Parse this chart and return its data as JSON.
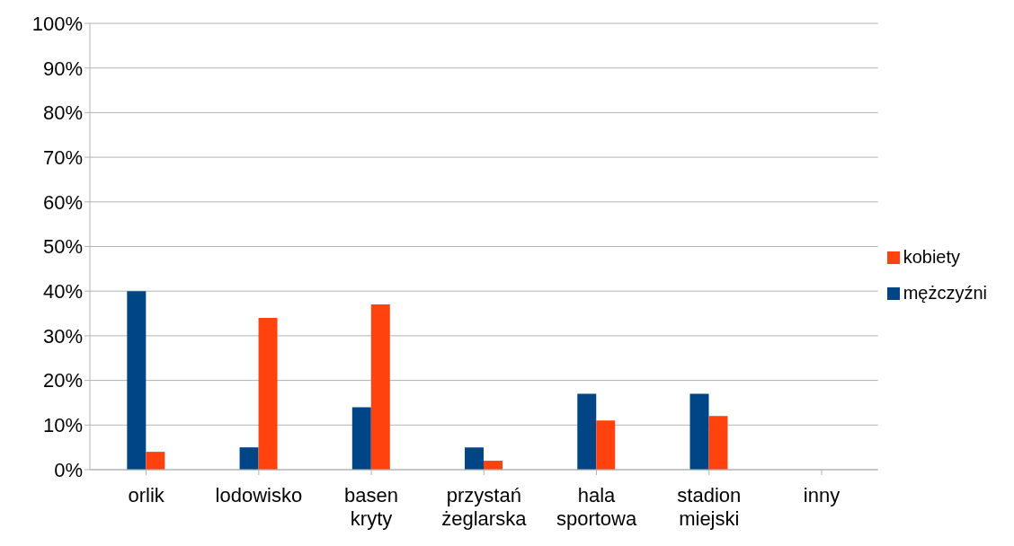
{
  "chart_data": {
    "type": "bar",
    "categories": [
      "orlik",
      "lodowisko",
      "basen kryty",
      "przystań żeglarska",
      "hala sportowa",
      "stadion miejski",
      "inny"
    ],
    "series": [
      {
        "name": "mężczyźni",
        "color": "#004586",
        "values": [
          40,
          5,
          14,
          5,
          17,
          17,
          0
        ]
      },
      {
        "name": "kobiety",
        "color": "#ff420e",
        "values": [
          4,
          34,
          37,
          2,
          11,
          12,
          0
        ]
      }
    ],
    "ylim": [
      0,
      100
    ],
    "yticks": [
      {
        "value": 0,
        "label": "0%"
      },
      {
        "value": 10,
        "label": "10%"
      },
      {
        "value": 20,
        "label": "20%"
      },
      {
        "value": 30,
        "label": "30%"
      },
      {
        "value": 40,
        "label": "40%"
      },
      {
        "value": 50,
        "label": "50%"
      },
      {
        "value": 60,
        "label": "60%"
      },
      {
        "value": 70,
        "label": "70%"
      },
      {
        "value": 80,
        "label": "80%"
      },
      {
        "value": 90,
        "label": "90%"
      },
      {
        "value": 100,
        "label": "100%"
      }
    ],
    "grid": "y",
    "legend": "right"
  }
}
